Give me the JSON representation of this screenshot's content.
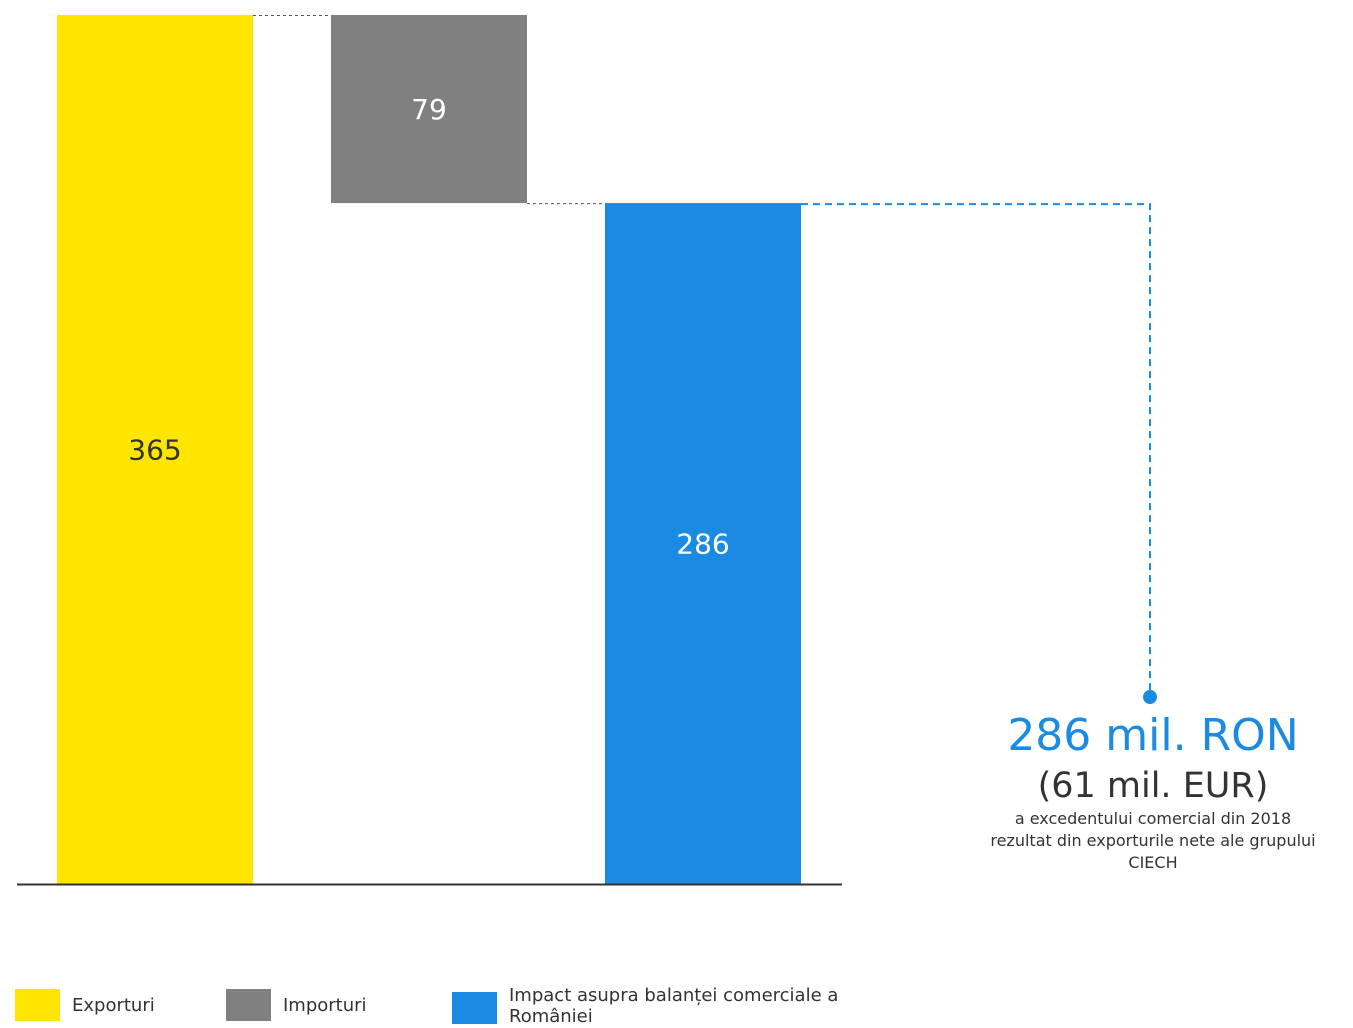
{
  "chart_data": {
    "type": "bar",
    "subtype": "waterfall",
    "categories": [
      "Exporturi",
      "Importuri",
      "Impact asupra balanței comerciale a României"
    ],
    "values": [
      365,
      -79,
      286
    ],
    "value_labels": [
      "365",
      "79",
      "286"
    ],
    "ylim": [
      0,
      365
    ],
    "grid": false,
    "legend_position": "bottom-left",
    "colors": [
      "#FFE600",
      "#808080",
      "#1A8AE2"
    ],
    "label_colors": [
      "#333333",
      "#ffffff",
      "#ffffff"
    ],
    "connector_color": "#555555",
    "callout_color": "#1A8AE2"
  },
  "callout": {
    "main": "286 mil. RON",
    "sub": "(61 mil. EUR)",
    "desc_lines": [
      "a excedentului comercial din 2018",
      "rezultat din exporturile nete ale grupului",
      "CIECH"
    ]
  },
  "legend": {
    "items": [
      {
        "label": "Exporturi",
        "color": "#FFE600"
      },
      {
        "label": "Importuri",
        "color": "#808080"
      },
      {
        "label_line1": "Impact asupra balanței comerciale a",
        "label_line2": "României",
        "color": "#1A8AE2"
      }
    ]
  }
}
